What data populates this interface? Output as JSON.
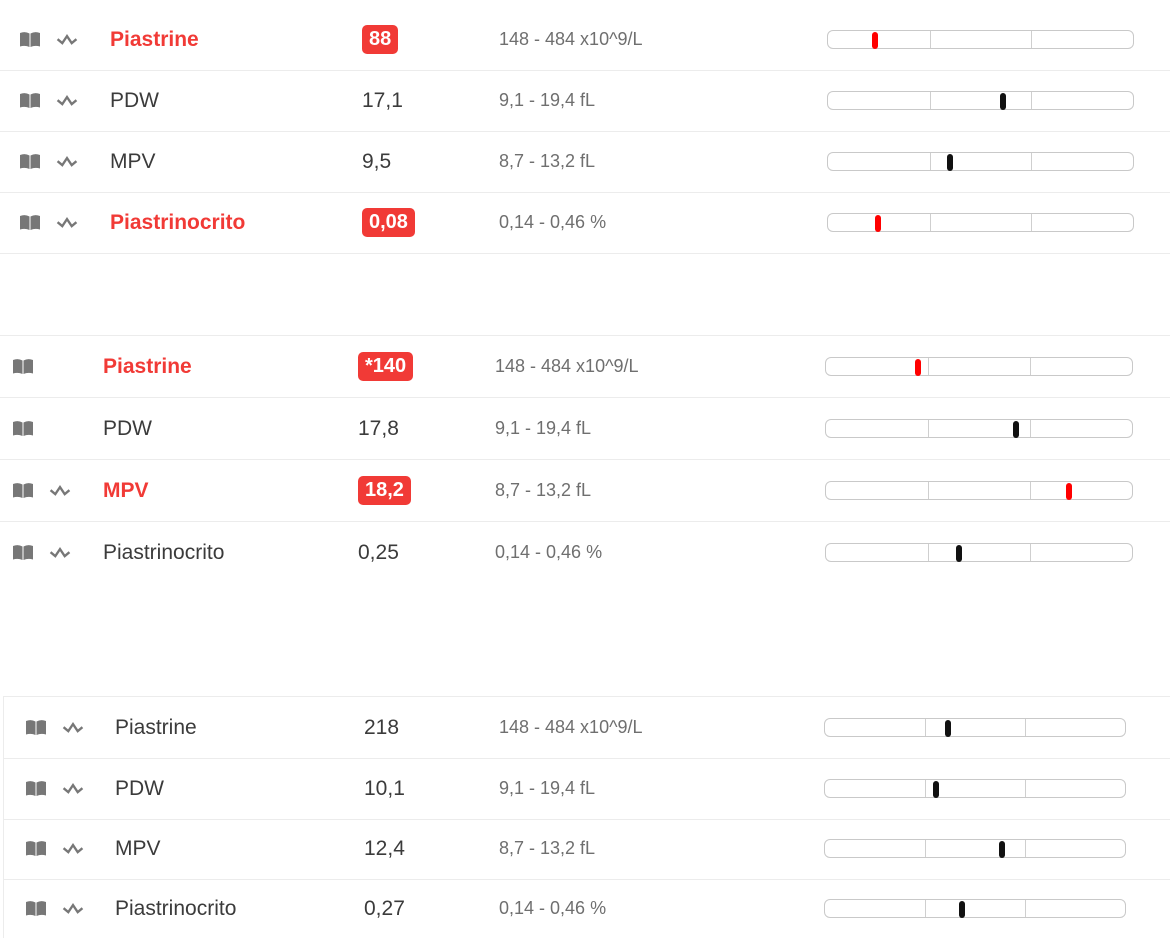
{
  "colors": {
    "abnormal": "#f13a36",
    "normal_text": "#3b3b3b",
    "marker_normal": "#111111",
    "marker_abnormal": "#ff0000"
  },
  "groups": [
    {
      "rows": [
        {
          "name": "Piastrine",
          "value": "88",
          "ref": "148 - 484 x10^9/L",
          "abnormal": true,
          "book_icon": "book-icon",
          "trend_icon": "trend-icon",
          "marker_fraction": 0.155
        },
        {
          "name": "PDW",
          "value": "17,1",
          "ref": "9,1 - 19,4 fL",
          "abnormal": false,
          "book_icon": "book-icon",
          "trend_icon": "trend-icon",
          "marker_fraction": 0.575
        },
        {
          "name": "MPV",
          "value": "9,5",
          "ref": "8,7 - 13,2 fL",
          "abnormal": false,
          "book_icon": "book-icon",
          "trend_icon": "trend-icon",
          "marker_fraction": 0.4
        },
        {
          "name": "Piastrinocrito",
          "value": "0,08",
          "ref": "0,14 - 0,46 %",
          "abnormal": true,
          "book_icon": "book-icon",
          "trend_icon": "trend-icon",
          "marker_fraction": 0.165
        }
      ]
    },
    {
      "rows": [
        {
          "name": "Piastrine",
          "value": "*140",
          "ref": "148 - 484 x10^9/L",
          "abnormal": true,
          "book_icon": "book-icon",
          "trend_icon": null,
          "marker_fraction": 0.3
        },
        {
          "name": "PDW",
          "value": "17,8",
          "ref": "9,1 - 19,4 fL",
          "abnormal": false,
          "book_icon": "book-icon",
          "trend_icon": null,
          "marker_fraction": 0.62
        },
        {
          "name": "MPV",
          "value": "18,2",
          "ref": "8,7 - 13,2 fL",
          "abnormal": true,
          "book_icon": "book-icon",
          "trend_icon": "trend-icon",
          "marker_fraction": 0.795
        },
        {
          "name": "Piastrinocrito",
          "value": "0,25",
          "ref": "0,14 - 0,46 %",
          "abnormal": false,
          "book_icon": "book-icon",
          "trend_icon": "trend-icon",
          "marker_fraction": 0.435
        }
      ]
    },
    {
      "rows": [
        {
          "name": "Piastrine",
          "value": "218",
          "ref": "148 - 484 x10^9/L",
          "abnormal": false,
          "book_icon": "book-icon",
          "trend_icon": "trend-icon",
          "marker_fraction": 0.41
        },
        {
          "name": "PDW",
          "value": "10,1",
          "ref": "9,1 - 19,4 fL",
          "abnormal": false,
          "book_icon": "book-icon",
          "trend_icon": "trend-icon",
          "marker_fraction": 0.37
        },
        {
          "name": "MPV",
          "value": "12,4",
          "ref": "8,7 - 13,2 fL",
          "abnormal": false,
          "book_icon": "book-icon",
          "trend_icon": "trend-icon",
          "marker_fraction": 0.59
        },
        {
          "name": "Piastrinocrito",
          "value": "0,27",
          "ref": "0,14 - 0,46 %",
          "abnormal": false,
          "book_icon": "book-icon",
          "trend_icon": "trend-icon",
          "marker_fraction": 0.455
        }
      ]
    }
  ]
}
